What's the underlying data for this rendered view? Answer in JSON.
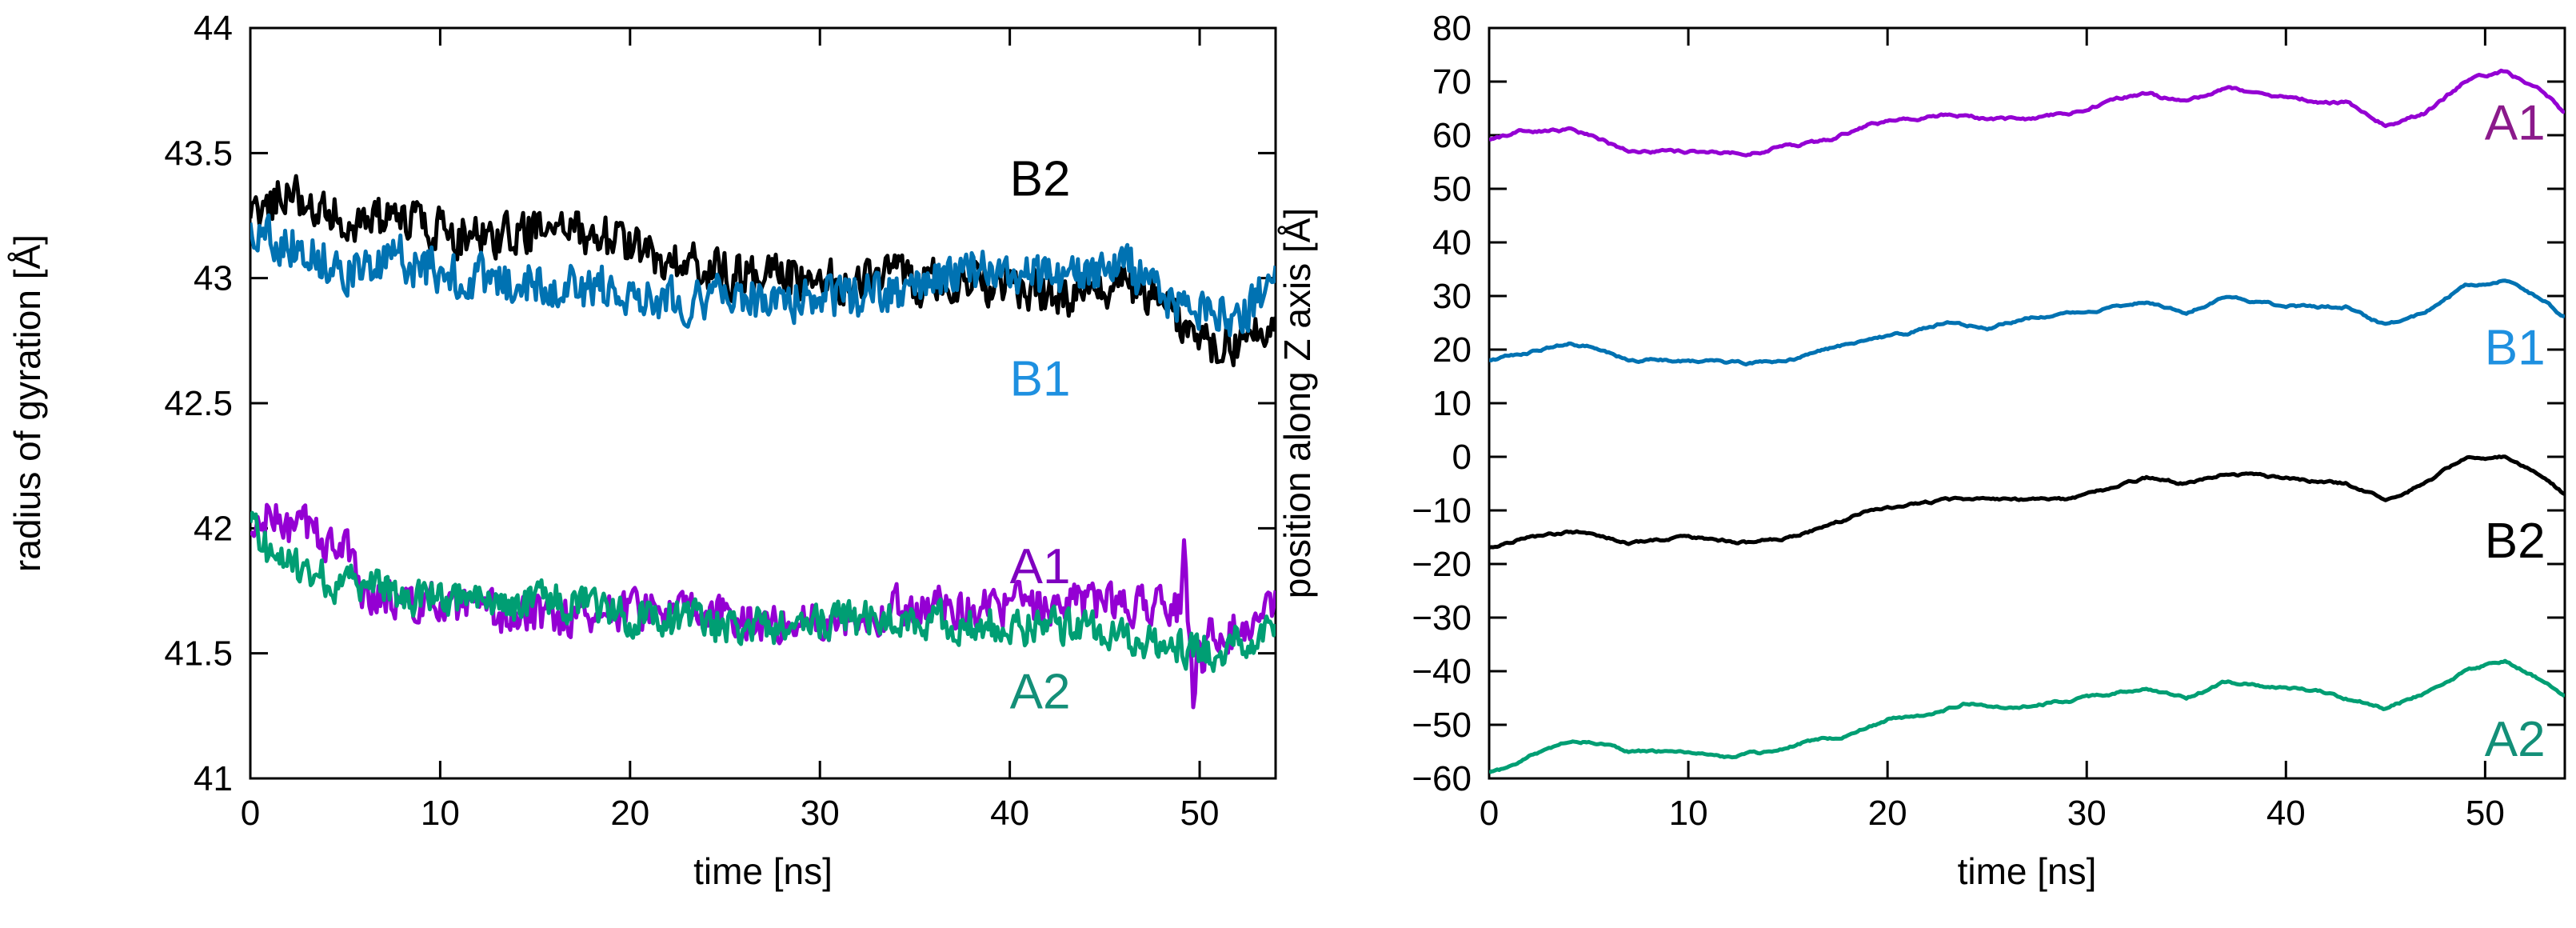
{
  "chart_data": [
    {
      "type": "line",
      "title": "",
      "xlabel": "time [ns]",
      "ylabel": "radius of gyration [Å]",
      "xlim": [
        0,
        54
      ],
      "ylim": [
        41,
        44
      ],
      "xticks": [
        0,
        10,
        20,
        30,
        40,
        50
      ],
      "yticks": [
        41,
        41.5,
        42,
        42.5,
        43,
        43.5,
        44
      ],
      "ytick_labels": [
        "41",
        "41.5",
        "42",
        "42.5",
        "43",
        "43.5",
        "44"
      ],
      "series": [
        {
          "name": "B2",
          "color": "#000000",
          "label_color": "#000000",
          "noise": 0.06,
          "label_at": [
            40,
            43.4
          ],
          "x": [
            0,
            1,
            2,
            3,
            5,
            7,
            10,
            13,
            16,
            18,
            20,
            22,
            25,
            28,
            30,
            33,
            36,
            40,
            44,
            46,
            48,
            50,
            52,
            54
          ],
          "values": [
            43.22,
            43.3,
            43.38,
            43.28,
            43.25,
            43.22,
            43.2,
            43.15,
            43.2,
            43.18,
            43.12,
            43.08,
            43.02,
            43.0,
            42.98,
            43.0,
            42.98,
            42.98,
            42.92,
            42.98,
            42.92,
            42.75,
            42.72,
            42.78
          ]
        },
        {
          "name": "B1",
          "color": "#0072b2",
          "label_color": "#1e90e0",
          "noise": 0.06,
          "label_at": [
            40,
            42.6
          ],
          "x": [
            0,
            2,
            4,
            6,
            8,
            10,
            13,
            16,
            20,
            23,
            26,
            30,
            33,
            36,
            39,
            42,
            46,
            48,
            50,
            52,
            54
          ],
          "values": [
            43.2,
            43.15,
            43.08,
            43.02,
            43.08,
            43.02,
            42.98,
            42.98,
            42.95,
            42.92,
            42.92,
            42.92,
            42.93,
            42.98,
            43.05,
            42.98,
            43.05,
            42.95,
            42.85,
            42.85,
            43.0
          ]
        },
        {
          "name": "A1",
          "color": "#9400d3",
          "label_color": "#7f00bf",
          "noise": 0.055,
          "label_at": [
            40,
            41.85
          ],
          "spikes": [
            [
              49.2,
              41.98
            ],
            [
              49.7,
              41.2
            ],
            [
              50.2,
              41.38
            ]
          ],
          "x": [
            0,
            1,
            2,
            3,
            4,
            5,
            6,
            8,
            10,
            13,
            16,
            20,
            24,
            28,
            32,
            36,
            40,
            44,
            47,
            49,
            51,
            54
          ],
          "values": [
            41.95,
            42.05,
            42.0,
            42.0,
            41.95,
            41.92,
            41.75,
            41.7,
            41.68,
            41.65,
            41.65,
            41.68,
            41.65,
            41.62,
            41.65,
            41.7,
            41.68,
            41.7,
            41.7,
            41.68,
            41.55,
            41.72
          ]
        },
        {
          "name": "A2",
          "color": "#009e73",
          "label_color": "#138f78",
          "noise": 0.05,
          "label_at": [
            40,
            41.35
          ],
          "x": [
            0,
            1,
            3,
            5,
            7,
            10,
            12,
            14,
            16,
            18,
            20,
            23,
            26,
            30,
            34,
            38,
            42,
            46,
            48,
            50,
            52,
            54
          ],
          "values": [
            42.0,
            41.9,
            41.82,
            41.78,
            41.75,
            41.72,
            41.7,
            41.68,
            41.72,
            41.68,
            41.65,
            41.63,
            41.6,
            41.62,
            41.65,
            41.62,
            41.6,
            41.58,
            41.55,
            41.5,
            41.55,
            41.58
          ]
        }
      ]
    },
    {
      "type": "line",
      "title": "",
      "xlabel": "time [ns]",
      "ylabel": "position along Z axis [Å]",
      "xlim": [
        0,
        54
      ],
      "ylim": [
        -60,
        80
      ],
      "xticks": [
        0,
        10,
        20,
        30,
        40,
        50
      ],
      "yticks": [
        -60,
        -50,
        -40,
        -30,
        -20,
        -10,
        0,
        10,
        20,
        30,
        40,
        50,
        60,
        70,
        80
      ],
      "ytick_labels": [
        "−60",
        "−50",
        "−40",
        "−30",
        "−20",
        "−10",
        "0",
        "10",
        "20",
        "30",
        "40",
        "50",
        "60",
        "70",
        "80"
      ],
      "series": [
        {
          "name": "A1",
          "color": "#9400d3",
          "label_color": "#8b1a8b",
          "noise": 0.6,
          "label_at": [
            51.5,
            62.5
          ],
          "x": [
            0,
            2,
            4,
            5,
            7,
            10,
            13,
            15,
            17,
            19,
            21,
            23,
            25,
            27,
            29,
            31,
            33,
            35,
            37,
            40,
            43,
            45,
            47,
            49,
            51,
            53,
            54
          ],
          "values": [
            59,
            61,
            61,
            60,
            57,
            57,
            56.5,
            58,
            59,
            62,
            63,
            64,
            63,
            63,
            64,
            66,
            68,
            66,
            69,
            67,
            66,
            62,
            64,
            70,
            72,
            68,
            64
          ]
        },
        {
          "name": "B1",
          "color": "#0072b2",
          "label_color": "#1e90e0",
          "noise": 0.5,
          "label_at": [
            51.5,
            20.5
          ],
          "x": [
            0,
            2,
            4,
            5,
            7,
            10,
            13,
            15,
            17,
            19,
            21,
            23,
            25,
            27,
            30,
            33,
            35,
            37,
            40,
            43,
            45,
            47,
            49,
            51,
            53,
            54
          ],
          "values": [
            18,
            19.5,
            21,
            20.5,
            18,
            18,
            17.5,
            18,
            20,
            22,
            23,
            25,
            24,
            26,
            27,
            29,
            27,
            30,
            28,
            28,
            24.5,
            27,
            32,
            33,
            29,
            26
          ]
        },
        {
          "name": "B2",
          "color": "#000000",
          "label_color": "#000000",
          "noise": 0.5,
          "label_at": [
            51.5,
            -15.5
          ],
          "x": [
            0,
            2,
            4,
            5,
            7,
            10,
            13,
            15,
            17,
            19,
            21,
            23,
            25,
            27,
            29,
            31,
            33,
            35,
            37,
            40,
            43,
            45,
            47,
            49,
            51,
            53,
            54
          ],
          "values": [
            -17,
            -15,
            -14,
            -14,
            -16,
            -15,
            -16,
            -15,
            -13,
            -10,
            -9,
            -8,
            -8,
            -8,
            -8,
            -6,
            -4,
            -5,
            -3,
            -4,
            -5,
            -8,
            -5,
            0,
            0,
            -4,
            -7
          ]
        },
        {
          "name": "A2",
          "color": "#009e73",
          "label_color": "#138f78",
          "noise": 0.5,
          "label_at": [
            51.5,
            -52.5
          ],
          "x": [
            0,
            1,
            2,
            4,
            5,
            7,
            10,
            12,
            14,
            16,
            18,
            20,
            22,
            24,
            26,
            28,
            30,
            33,
            35,
            37,
            40,
            42,
            45,
            47,
            49,
            51,
            53,
            54
          ],
          "values": [
            -59,
            -58,
            -56,
            -53,
            -53,
            -55,
            -55,
            -56,
            -55,
            -53,
            -52,
            -49,
            -48,
            -46,
            -47,
            -46,
            -45,
            -43,
            -45,
            -42,
            -43,
            -44,
            -47,
            -44,
            -40,
            -38,
            -42,
            -45
          ]
        }
      ]
    }
  ]
}
